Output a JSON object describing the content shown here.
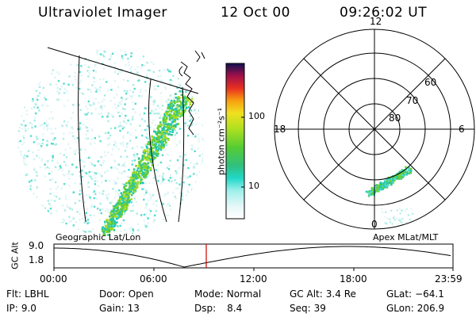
{
  "header": {
    "instrument": "Ultraviolet Imager",
    "date": "12 Oct 00",
    "time": "09:26:02 UT"
  },
  "colorbar": {
    "label": "photon cm⁻²s⁻¹",
    "ticks": [
      "100",
      "10"
    ],
    "scale": "log",
    "range": [
      2,
      300
    ]
  },
  "polar_plot": {
    "mlt_labels": {
      "top": "12",
      "bottom": "0",
      "left": "18",
      "right": "6"
    },
    "lat_labels": [
      "60",
      "70",
      "80"
    ]
  },
  "timeline": {
    "left_label": "Geographic Lat/Lon",
    "right_label": "Apex MLat/MLT",
    "y_label": "GC Alt",
    "y_ticks": [
      "9.0",
      "1.8"
    ],
    "x_ticks": [
      "00:00",
      "06:00",
      "12:00",
      "18:00",
      "23:59"
    ],
    "current_marker_color": "#cc0000"
  },
  "info": {
    "flt_label": "Flt:",
    "flt_value": "LBHL",
    "ip_label": "IP:",
    "ip_value": "9.0",
    "door_label": "Door:",
    "door_value": "Open",
    "gain_label": "Gain:",
    "gain_value": "13",
    "mode_label": "Mode:",
    "mode_value": "Normal",
    "dsp_label": "Dsp:",
    "dsp_value": "8.4",
    "gcalt_label": "GC Alt:",
    "gcalt_value": "3.4 Re",
    "seq_label": "Seq:",
    "seq_value": "39",
    "glat_label": "GLat:",
    "glat_value": "−64.1",
    "glon_label": "GLon:",
    "glon_value": "206.9"
  }
}
